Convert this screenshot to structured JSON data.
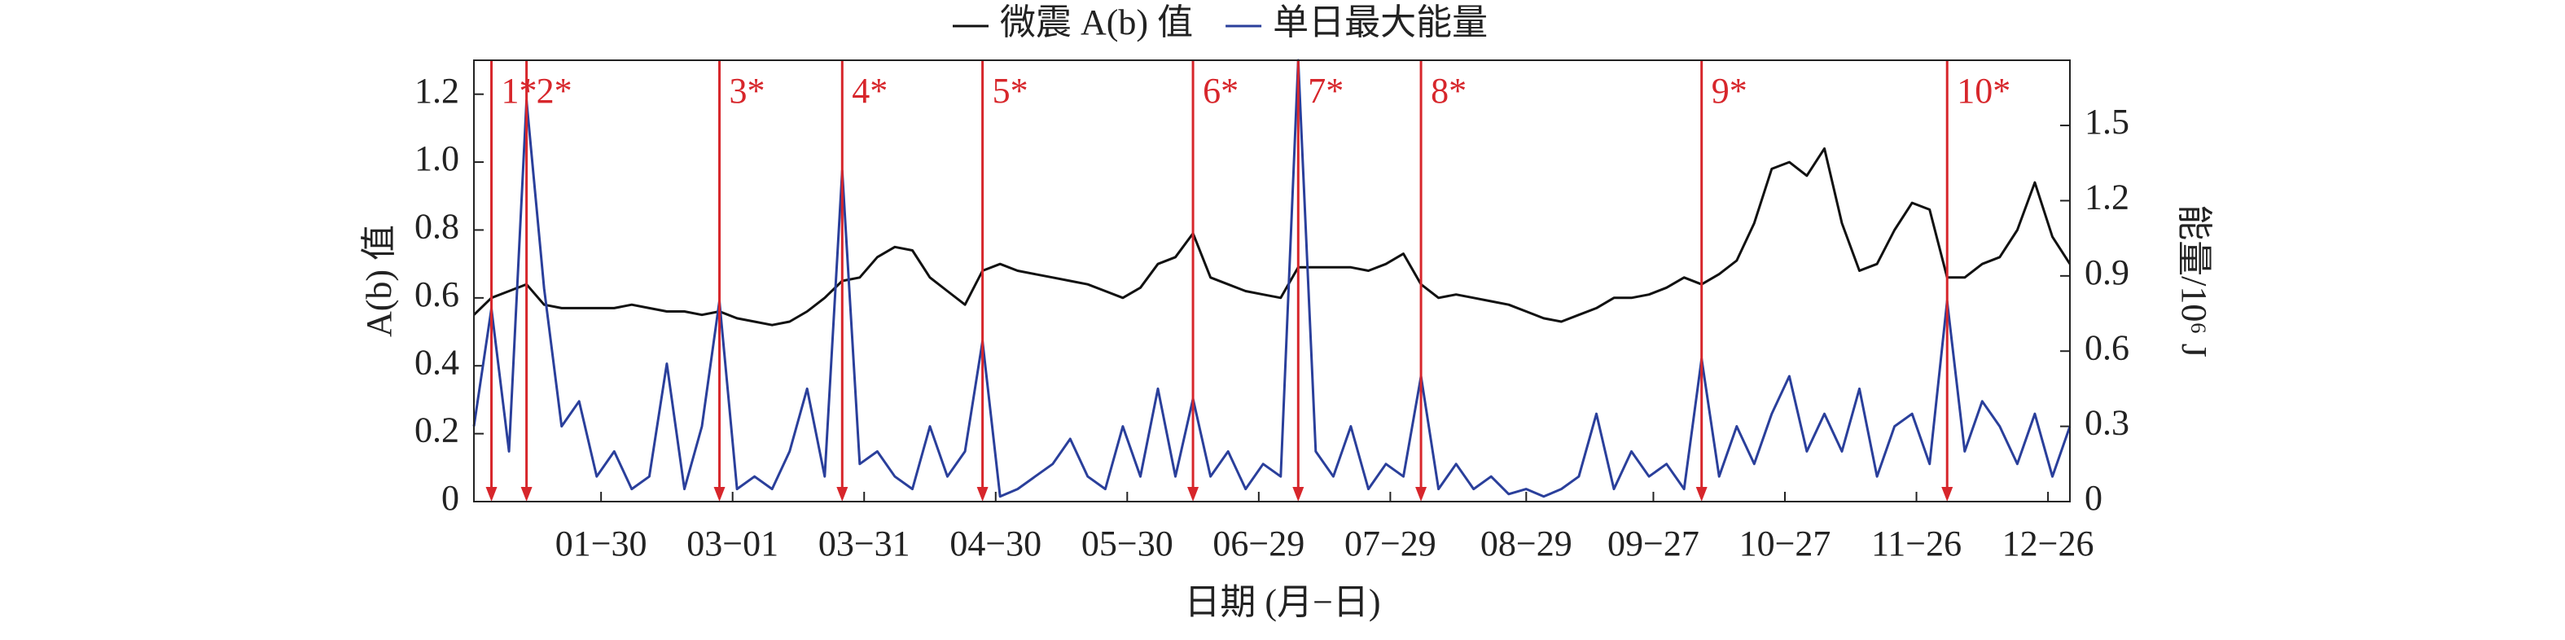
{
  "chart_data": {
    "type": "line",
    "legend_position": "top",
    "xlabel": "日期 (月−日)",
    "ylabel": "A(b) 值",
    "y2label": "能量/10⁶ J",
    "x": [
      1,
      5,
      9,
      13,
      17,
      21,
      25,
      29,
      33,
      37,
      41,
      45,
      49,
      53,
      57,
      61,
      65,
      69,
      73,
      77,
      81,
      85,
      89,
      93,
      97,
      101,
      105,
      109,
      113,
      117,
      121,
      125,
      129,
      133,
      137,
      141,
      145,
      149,
      153,
      157,
      161,
      165,
      169,
      173,
      177,
      181,
      185,
      189,
      193,
      197,
      201,
      205,
      209,
      213,
      217,
      221,
      225,
      229,
      233,
      237,
      241,
      245,
      249,
      253,
      257,
      261,
      265,
      269,
      273,
      277,
      281,
      285,
      289,
      293,
      297,
      301,
      305,
      309,
      313,
      317,
      321,
      325,
      329,
      333,
      337,
      341,
      345,
      349,
      353,
      357,
      361,
      365
    ],
    "series": [
      {
        "name": "微震 A(b) 值",
        "color": "#111111",
        "axis": "y",
        "values": [
          0.55,
          0.6,
          0.62,
          0.64,
          0.58,
          0.57,
          0.57,
          0.57,
          0.57,
          0.58,
          0.57,
          0.56,
          0.56,
          0.55,
          0.56,
          0.54,
          0.53,
          0.52,
          0.53,
          0.56,
          0.6,
          0.65,
          0.66,
          0.72,
          0.75,
          0.74,
          0.66,
          0.62,
          0.58,
          0.68,
          0.7,
          0.68,
          0.67,
          0.66,
          0.65,
          0.64,
          0.62,
          0.6,
          0.63,
          0.7,
          0.72,
          0.79,
          0.66,
          0.64,
          0.62,
          0.61,
          0.6,
          0.69,
          0.69,
          0.69,
          0.69,
          0.68,
          0.7,
          0.73,
          0.64,
          0.6,
          0.61,
          0.6,
          0.59,
          0.58,
          0.56,
          0.54,
          0.53,
          0.55,
          0.57,
          0.6,
          0.6,
          0.61,
          0.63,
          0.66,
          0.64,
          0.67,
          0.71,
          0.82,
          0.98,
          1.0,
          0.96,
          1.04,
          0.82,
          0.68,
          0.7,
          0.8,
          0.88,
          0.86,
          0.66,
          0.66,
          0.7,
          0.72,
          0.8,
          0.94,
          0.78,
          0.7
        ]
      },
      {
        "name": "单日最大能量",
        "color": "#2a3f9b",
        "axis": "y2",
        "values": [
          0.3,
          0.77,
          0.2,
          1.6,
          0.85,
          0.3,
          0.4,
          0.1,
          0.2,
          0.05,
          0.1,
          0.55,
          0.05,
          0.3,
          0.8,
          0.05,
          0.1,
          0.05,
          0.2,
          0.45,
          0.1,
          1.32,
          0.15,
          0.2,
          0.1,
          0.05,
          0.3,
          0.1,
          0.2,
          0.64,
          0.02,
          0.05,
          0.1,
          0.15,
          0.25,
          0.1,
          0.05,
          0.3,
          0.1,
          0.45,
          0.1,
          0.41,
          0.1,
          0.2,
          0.05,
          0.15,
          0.1,
          1.76,
          0.2,
          0.1,
          0.3,
          0.05,
          0.15,
          0.1,
          0.5,
          0.05,
          0.15,
          0.05,
          0.1,
          0.03,
          0.05,
          0.02,
          0.05,
          0.1,
          0.35,
          0.05,
          0.2,
          0.1,
          0.15,
          0.05,
          0.57,
          0.1,
          0.3,
          0.15,
          0.35,
          0.5,
          0.2,
          0.35,
          0.2,
          0.45,
          0.1,
          0.3,
          0.35,
          0.15,
          0.8,
          0.2,
          0.4,
          0.3,
          0.15,
          0.35,
          0.1,
          0.3
        ]
      }
    ],
    "events": [
      {
        "label": "1*",
        "x": 5
      },
      {
        "label": "2*",
        "x": 13
      },
      {
        "label": "3*",
        "x": 57
      },
      {
        "label": "4*",
        "x": 85
      },
      {
        "label": "5*",
        "x": 117
      },
      {
        "label": "6*",
        "x": 165
      },
      {
        "label": "7*",
        "x": 189
      },
      {
        "label": "8*",
        "x": 217
      },
      {
        "label": "9*",
        "x": 281
      },
      {
        "label": "10*",
        "x": 337
      }
    ],
    "event_color": "#d7262b",
    "xlim": [
      1,
      365
    ],
    "xticks": [
      {
        "value": 30,
        "label": "01−30"
      },
      {
        "value": 60,
        "label": "03−01"
      },
      {
        "value": 90,
        "label": "03−31"
      },
      {
        "value": 120,
        "label": "04−30"
      },
      {
        "value": 150,
        "label": "05−30"
      },
      {
        "value": 180,
        "label": "06−29"
      },
      {
        "value": 210,
        "label": "07−29"
      },
      {
        "value": 241,
        "label": "08−29"
      },
      {
        "value": 270,
        "label": "09−27"
      },
      {
        "value": 300,
        "label": "10−27"
      },
      {
        "value": 330,
        "label": "11−26"
      },
      {
        "value": 360,
        "label": "12−26"
      }
    ],
    "ylim": [
      0,
      1.3
    ],
    "yticks": [
      0,
      0.2,
      0.4,
      0.6,
      0.8,
      {
        "value": 1,
        "label": "1.0"
      },
      1.2
    ],
    "y2lim": [
      0,
      1.76
    ],
    "y2ticks": [
      0,
      0.3,
      0.6,
      0.9,
      1.2,
      1.5
    ]
  }
}
